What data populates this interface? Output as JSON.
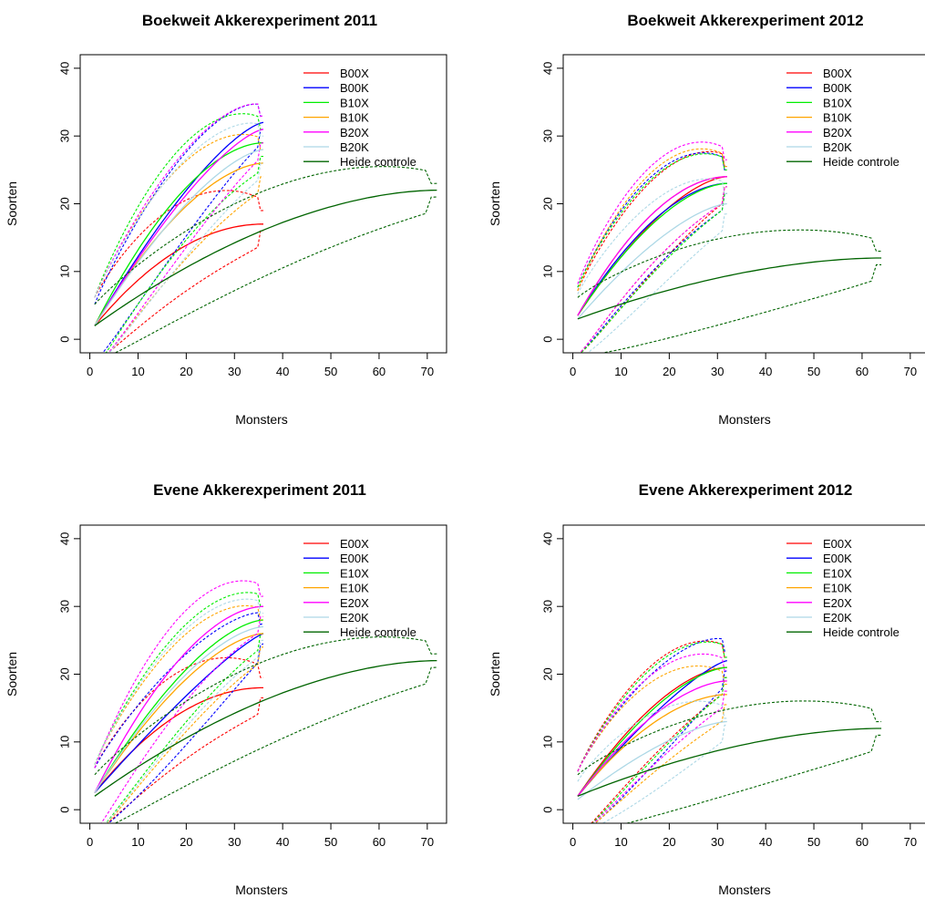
{
  "chart_data": [
    {
      "type": "line",
      "title": "Boekweit Akkerexperiment 2011",
      "xlabel": "Monsters",
      "ylabel": "Soorten",
      "xlim": [
        0,
        72
      ],
      "ylim": [
        0,
        40
      ],
      "xticks": [
        "0",
        "10",
        "20",
        "30",
        "40",
        "50",
        "60",
        "70"
      ],
      "yticks": [
        "0",
        "10",
        "20",
        "30",
        "40"
      ],
      "legend_position": "top-right",
      "series": [
        {
          "name": "B00X",
          "color": "#ff0000",
          "n": 36,
          "final": 17,
          "start": 2.0,
          "curv": 2.0,
          "ci_top": 19.0,
          "ci_bot": 16.0
        },
        {
          "name": "B00K",
          "color": "#0000ff",
          "n": 36,
          "final": 32,
          "start": 2.0,
          "curv": 1.4,
          "ci_top": 33.0,
          "ci_bot": 31.0
        },
        {
          "name": "B10X",
          "color": "#00ee00",
          "n": 36,
          "final": 29,
          "start": 2.0,
          "curv": 1.8,
          "ci_top": 31.0,
          "ci_bot": 27.0
        },
        {
          "name": "B10K",
          "color": "#ffa500",
          "n": 36,
          "final": 26,
          "start": 2.0,
          "curv": 1.7,
          "ci_top": 28.0,
          "ci_bot": 24.0
        },
        {
          "name": "B20X",
          "color": "#ff00ff",
          "n": 36,
          "final": 31,
          "start": 2.0,
          "curv": 1.4,
          "ci_top": 33.0,
          "ci_bot": 29.0
        },
        {
          "name": "B20K",
          "color": "#add8e6",
          "n": 36,
          "final": 28,
          "start": 2.0,
          "curv": 1.5,
          "ci_top": 30.0,
          "ci_bot": 26.0
        },
        {
          "name": "Heide controle",
          "color": "#006400",
          "n": 72,
          "final": 22,
          "start": 2.0,
          "curv": 1.8,
          "ci_top": 23.0,
          "ci_bot": 21.0
        }
      ]
    },
    {
      "type": "line",
      "title": "Boekweit Akkerexperiment 2012",
      "xlabel": "Monsters",
      "ylabel": "Soorten",
      "xlim": [
        0,
        72
      ],
      "ylim": [
        0,
        40
      ],
      "xticks": [
        "0",
        "10",
        "20",
        "30",
        "40",
        "50",
        "60",
        "70"
      ],
      "yticks": [
        "0",
        "10",
        "20",
        "30",
        "40"
      ],
      "legend_position": "top-right",
      "series": [
        {
          "name": "B00X",
          "color": "#ff0000",
          "n": 32,
          "final": 24,
          "start": 3.5,
          "curv": 1.6,
          "ci_top": 25.5,
          "ci_bot": 22.5
        },
        {
          "name": "B00K",
          "color": "#0000ff",
          "n": 32,
          "final": 23,
          "start": 3.5,
          "curv": 1.8,
          "ci_top": 25.0,
          "ci_bot": 21.5
        },
        {
          "name": "B10X",
          "color": "#00ee00",
          "n": 32,
          "final": 23,
          "start": 3.5,
          "curv": 1.7,
          "ci_top": 25.0,
          "ci_bot": 21.5
        },
        {
          "name": "B10K",
          "color": "#ffa500",
          "n": 32,
          "final": 24,
          "start": 3.5,
          "curv": 1.9,
          "ci_top": 25.5,
          "ci_bot": 22.5
        },
        {
          "name": "B20X",
          "color": "#ff00ff",
          "n": 32,
          "final": 24,
          "start": 3.5,
          "curv": 1.9,
          "ci_top": 26.5,
          "ci_bot": 22.5
        },
        {
          "name": "B20K",
          "color": "#add8e6",
          "n": 32,
          "final": 20,
          "start": 3.0,
          "curv": 1.5,
          "ci_top": 21.5,
          "ci_bot": 18.5
        },
        {
          "name": "Heide controle",
          "color": "#006400",
          "n": 64,
          "final": 12,
          "start": 3.0,
          "curv": 1.8,
          "ci_top": 13.0,
          "ci_bot": 11.0
        }
      ]
    },
    {
      "type": "line",
      "title": "Evene Akkerexperiment 2011",
      "xlabel": "Monsters",
      "ylabel": "Soorten",
      "xlim": [
        0,
        72
      ],
      "ylim": [
        0,
        40
      ],
      "xticks": [
        "0",
        "10",
        "20",
        "30",
        "40",
        "50",
        "60",
        "70"
      ],
      "yticks": [
        "0",
        "10",
        "20",
        "30",
        "40"
      ],
      "legend_position": "top-right",
      "series": [
        {
          "name": "E00X",
          "color": "#ff0000",
          "n": 36,
          "final": 18,
          "start": 2.5,
          "curv": 2.0,
          "ci_top": 19.5,
          "ci_bot": 16.5
        },
        {
          "name": "E00K",
          "color": "#0000ff",
          "n": 36,
          "final": 26,
          "start": 2.5,
          "curv": 1.2,
          "ci_top": 27.5,
          "ci_bot": 24.5
        },
        {
          "name": "E10X",
          "color": "#00ee00",
          "n": 36,
          "final": 28,
          "start": 2.5,
          "curv": 1.6,
          "ci_top": 30.0,
          "ci_bot": 26.0
        },
        {
          "name": "E10K",
          "color": "#ffa500",
          "n": 36,
          "final": 26,
          "start": 2.5,
          "curv": 1.6,
          "ci_top": 28.0,
          "ci_bot": 24.0
        },
        {
          "name": "E20X",
          "color": "#ff00ff",
          "n": 36,
          "final": 30,
          "start": 2.5,
          "curv": 1.8,
          "ci_top": 31.5,
          "ci_bot": 28.5
        },
        {
          "name": "E20K",
          "color": "#add8e6",
          "n": 36,
          "final": 27,
          "start": 2.5,
          "curv": 1.6,
          "ci_top": 29.0,
          "ci_bot": 25.0
        },
        {
          "name": "Heide controle",
          "color": "#006400",
          "n": 72,
          "final": 22,
          "start": 2.0,
          "curv": 1.8,
          "ci_top": 23.0,
          "ci_bot": 21.0
        }
      ]
    },
    {
      "type": "line",
      "title": "Evene Akkerexperiment 2012",
      "xlabel": "Monsters",
      "ylabel": "Soorten",
      "xlim": [
        0,
        72
      ],
      "ylim": [
        0,
        40
      ],
      "xticks": [
        "0",
        "10",
        "20",
        "30",
        "40",
        "50",
        "60",
        "70"
      ],
      "yticks": [
        "0",
        "10",
        "20",
        "30",
        "40"
      ],
      "legend_position": "top-right",
      "series": [
        {
          "name": "E00X",
          "color": "#ff0000",
          "n": 32,
          "final": 21,
          "start": 2.0,
          "curv": 1.7,
          "ci_top": 22.5,
          "ci_bot": 19.5
        },
        {
          "name": "E00K",
          "color": "#0000ff",
          "n": 32,
          "final": 22,
          "start": 2.0,
          "curv": 1.3,
          "ci_top": 23.5,
          "ci_bot": 20.5
        },
        {
          "name": "E10X",
          "color": "#00ee00",
          "n": 32,
          "final": 21,
          "start": 2.0,
          "curv": 1.6,
          "ci_top": 22.5,
          "ci_bot": 19.5
        },
        {
          "name": "E10K",
          "color": "#ffa500",
          "n": 32,
          "final": 17,
          "start": 2.0,
          "curv": 1.8,
          "ci_top": 18.5,
          "ci_bot": 15.5
        },
        {
          "name": "E20X",
          "color": "#ff00ff",
          "n": 32,
          "final": 19,
          "start": 2.0,
          "curv": 1.7,
          "ci_top": 20.5,
          "ci_bot": 17.5
        },
        {
          "name": "E20K",
          "color": "#add8e6",
          "n": 32,
          "final": 13,
          "start": 1.5,
          "curv": 1.5,
          "ci_top": 13.5,
          "ci_bot": 12.5
        },
        {
          "name": "Heide controle",
          "color": "#006400",
          "n": 64,
          "final": 12,
          "start": 2.0,
          "curv": 1.8,
          "ci_top": 13.0,
          "ci_bot": 11.0
        }
      ]
    }
  ]
}
